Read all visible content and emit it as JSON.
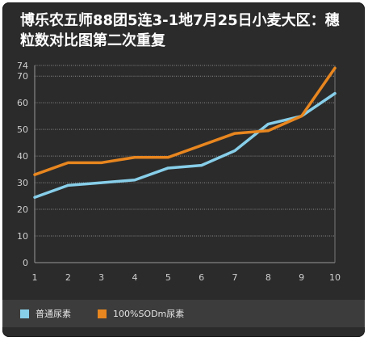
{
  "chart_data": {
    "type": "line",
    "title": "博乐农五师88团5连3-1地7月25日小麦大区：穗粒数对比图第二次重复",
    "x": [
      1,
      2,
      3,
      4,
      5,
      6,
      7,
      8,
      9,
      10
    ],
    "yticks": [
      0,
      10,
      20,
      30,
      40,
      50,
      60,
      70,
      74
    ],
    "ylim": [
      0,
      74
    ],
    "grid": true,
    "legend_position": "bottom",
    "series": [
      {
        "name": "普通尿素",
        "color": "#87cee9",
        "values": [
          24.5,
          29,
          30,
          31,
          35.5,
          36.5,
          42,
          52,
          55,
          63.5
        ]
      },
      {
        "name": "100%SODm尿素",
        "color": "#e8861f",
        "values": [
          33,
          37.5,
          37.5,
          39.5,
          39.5,
          44,
          48.5,
          49.5,
          55,
          73
        ]
      }
    ]
  }
}
